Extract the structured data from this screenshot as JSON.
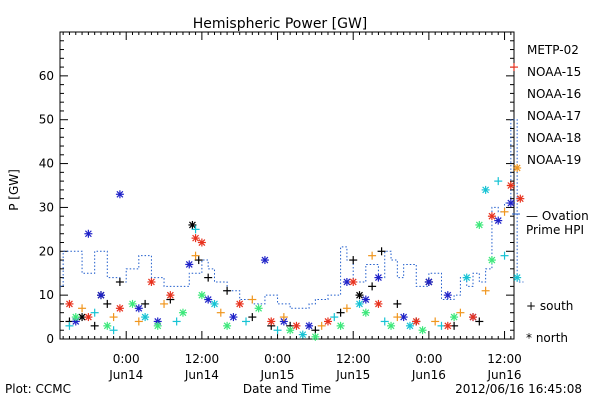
{
  "footer": {
    "left": "Plot: CCMC",
    "center": "Date and Time",
    "right": "2012/06/16 16:45:08"
  },
  "chart_data": {
    "type": "scatter",
    "title": "Hemispheric Power [GW]",
    "xlabel": "Date and Time",
    "ylabel": "P [GW]",
    "ylim": [
      0,
      70
    ],
    "xlim": [
      -10.5,
      61.5
    ],
    "x_unit": "hours since 2012-06-14 00:00",
    "yticks": [
      0,
      10,
      20,
      30,
      40,
      50,
      60
    ],
    "xticks": [
      {
        "x": 0,
        "time": "0:00",
        "date": "Jun14"
      },
      {
        "x": 12,
        "time": "12:00",
        "date": "Jun14"
      },
      {
        "x": 24,
        "time": "0:00",
        "date": "Jun15"
      },
      {
        "x": 36,
        "time": "12:00",
        "date": "Jun15"
      },
      {
        "x": 48,
        "time": "0:00",
        "date": "Jun16"
      },
      {
        "x": 60,
        "time": "12:00",
        "date": "Jun16"
      }
    ],
    "grid": false,
    "legend_position": "right-outside",
    "marker_legend": [
      {
        "symbol": "+",
        "label": "south"
      },
      {
        "symbol": "*",
        "label": "north"
      }
    ],
    "series": [
      {
        "name": "METP-02",
        "color": "#000000",
        "points": [
          {
            "x": -9,
            "y": 4,
            "m": "+"
          },
          {
            "x": -7,
            "y": 5,
            "m": "*"
          },
          {
            "x": -5,
            "y": 3,
            "m": "+"
          },
          {
            "x": -3,
            "y": 8,
            "m": "+"
          },
          {
            "x": -1,
            "y": 13,
            "m": "+"
          },
          {
            "x": -4,
            "y": 10,
            "m": "*"
          },
          {
            "x": 3,
            "y": 8,
            "m": "+"
          },
          {
            "x": 7,
            "y": 9,
            "m": "+"
          },
          {
            "x": 10.5,
            "y": 26,
            "m": "*"
          },
          {
            "x": 11.5,
            "y": 18,
            "m": "+"
          },
          {
            "x": 13,
            "y": 14,
            "m": "+"
          },
          {
            "x": 16,
            "y": 11,
            "m": "+"
          },
          {
            "x": 20,
            "y": 5,
            "m": "+"
          },
          {
            "x": 23,
            "y": 3,
            "m": "+"
          },
          {
            "x": 26,
            "y": 3,
            "m": "+"
          },
          {
            "x": 30,
            "y": 2,
            "m": "+"
          },
          {
            "x": 34,
            "y": 6,
            "m": "+"
          },
          {
            "x": 36,
            "y": 18,
            "m": "+"
          },
          {
            "x": 37,
            "y": 10,
            "m": "*"
          },
          {
            "x": 39,
            "y": 12,
            "m": "+"
          },
          {
            "x": 40.5,
            "y": 20,
            "m": "+"
          },
          {
            "x": 43,
            "y": 8,
            "m": "+"
          },
          {
            "x": 46,
            "y": 4,
            "m": "+"
          },
          {
            "x": 48,
            "y": 13,
            "m": "*"
          },
          {
            "x": 52,
            "y": 3,
            "m": "+"
          },
          {
            "x": 56,
            "y": 4,
            "m": "+"
          }
        ]
      },
      {
        "name": "NOAA-15",
        "color": "#1f22c8",
        "points": [
          {
            "x": -8,
            "y": 4,
            "m": "*"
          },
          {
            "x": -6,
            "y": 24,
            "m": "*"
          },
          {
            "x": -4,
            "y": 10,
            "m": "*"
          },
          {
            "x": -1,
            "y": 33,
            "m": "*"
          },
          {
            "x": 2,
            "y": 7,
            "m": "*"
          },
          {
            "x": 5,
            "y": 4,
            "m": "*"
          },
          {
            "x": 10,
            "y": 17,
            "m": "*"
          },
          {
            "x": 13,
            "y": 9,
            "m": "*"
          },
          {
            "x": 17,
            "y": 5,
            "m": "*"
          },
          {
            "x": 22,
            "y": 18,
            "m": "*"
          },
          {
            "x": 25,
            "y": 4,
            "m": "*"
          },
          {
            "x": 29,
            "y": 3,
            "m": "*"
          },
          {
            "x": 35,
            "y": 13,
            "m": "*"
          },
          {
            "x": 38,
            "y": 9,
            "m": "*"
          },
          {
            "x": 40,
            "y": 14,
            "m": "*"
          },
          {
            "x": 44,
            "y": 5,
            "m": "*"
          },
          {
            "x": 48,
            "y": 13,
            "m": "*"
          },
          {
            "x": 51,
            "y": 10,
            "m": "*"
          },
          {
            "x": 55,
            "y": 5,
            "m": "*"
          },
          {
            "x": 59,
            "y": 27,
            "m": "*"
          },
          {
            "x": 61,
            "y": 31,
            "m": "*"
          }
        ]
      },
      {
        "name": "NOAA-16",
        "color": "#17c3d4",
        "points": [
          {
            "x": -9,
            "y": 3,
            "m": "+"
          },
          {
            "x": -5,
            "y": 6,
            "m": "+"
          },
          {
            "x": -2,
            "y": 2,
            "m": "+"
          },
          {
            "x": 3,
            "y": 5,
            "m": "*"
          },
          {
            "x": 8,
            "y": 4,
            "m": "+"
          },
          {
            "x": 11,
            "y": 25,
            "m": "+"
          },
          {
            "x": 14,
            "y": 8,
            "m": "*"
          },
          {
            "x": 19,
            "y": 4,
            "m": "+"
          },
          {
            "x": 24,
            "y": 2,
            "m": "+"
          },
          {
            "x": 28,
            "y": 1,
            "m": "*"
          },
          {
            "x": 33,
            "y": 5,
            "m": "+"
          },
          {
            "x": 37,
            "y": 8,
            "m": "*"
          },
          {
            "x": 41,
            "y": 4,
            "m": "+"
          },
          {
            "x": 45,
            "y": 3,
            "m": "*"
          },
          {
            "x": 50,
            "y": 3,
            "m": "+"
          },
          {
            "x": 54,
            "y": 14,
            "m": "*"
          },
          {
            "x": 57,
            "y": 34,
            "m": "*"
          },
          {
            "x": 59,
            "y": 36,
            "m": "+"
          },
          {
            "x": 60,
            "y": 19,
            "m": "+"
          },
          {
            "x": 62,
            "y": 14,
            "m": "*"
          }
        ]
      },
      {
        "name": "NOAA-17",
        "color": "#3ce87a",
        "points": [
          {
            "x": -8,
            "y": 5,
            "m": "*"
          },
          {
            "x": -3,
            "y": 3,
            "m": "*"
          },
          {
            "x": 1,
            "y": 8,
            "m": "*"
          },
          {
            "x": 5,
            "y": 3,
            "m": "*"
          },
          {
            "x": 9,
            "y": 6,
            "m": "*"
          },
          {
            "x": 12,
            "y": 10,
            "m": "*"
          },
          {
            "x": 16,
            "y": 3,
            "m": "*"
          },
          {
            "x": 21,
            "y": 7,
            "m": "*"
          },
          {
            "x": 26,
            "y": 2,
            "m": "*"
          },
          {
            "x": 30,
            "y": 0.5,
            "m": "*"
          },
          {
            "x": 34,
            "y": 3,
            "m": "*"
          },
          {
            "x": 38,
            "y": 6,
            "m": "*"
          },
          {
            "x": 42,
            "y": 3,
            "m": "*"
          },
          {
            "x": 47,
            "y": 2,
            "m": "*"
          },
          {
            "x": 52,
            "y": 5,
            "m": "*"
          },
          {
            "x": 56,
            "y": 26,
            "m": "*"
          },
          {
            "x": 58,
            "y": 18,
            "m": "*"
          }
        ]
      },
      {
        "name": "NOAA-18",
        "color": "#f0961e",
        "points": [
          {
            "x": -7,
            "y": 7,
            "m": "+"
          },
          {
            "x": -2,
            "y": 5,
            "m": "+"
          },
          {
            "x": 2,
            "y": 4,
            "m": "+"
          },
          {
            "x": 6,
            "y": 8,
            "m": "+"
          },
          {
            "x": 11,
            "y": 19,
            "m": "+"
          },
          {
            "x": 15,
            "y": 6,
            "m": "+"
          },
          {
            "x": 20,
            "y": 9,
            "m": "+"
          },
          {
            "x": 25,
            "y": 5,
            "m": "+"
          },
          {
            "x": 31,
            "y": 3,
            "m": "+"
          },
          {
            "x": 35,
            "y": 7,
            "m": "+"
          },
          {
            "x": 39,
            "y": 19,
            "m": "+"
          },
          {
            "x": 43,
            "y": 5,
            "m": "+"
          },
          {
            "x": 49,
            "y": 4,
            "m": "+"
          },
          {
            "x": 53,
            "y": 6,
            "m": "+"
          },
          {
            "x": 57,
            "y": 11,
            "m": "+"
          },
          {
            "x": 60,
            "y": 29,
            "m": "+"
          },
          {
            "x": 61,
            "y": 35,
            "m": "+"
          },
          {
            "x": 62,
            "y": 39,
            "m": "*"
          }
        ]
      },
      {
        "name": "NOAA-19",
        "color": "#e8321e",
        "points": [
          {
            "x": -9,
            "y": 8,
            "m": "*"
          },
          {
            "x": -6,
            "y": 5,
            "m": "*"
          },
          {
            "x": -1,
            "y": 7,
            "m": "*"
          },
          {
            "x": 4,
            "y": 13,
            "m": "*"
          },
          {
            "x": 7,
            "y": 10,
            "m": "*"
          },
          {
            "x": 11,
            "y": 23,
            "m": "*"
          },
          {
            "x": 12,
            "y": 22,
            "m": "*"
          },
          {
            "x": 18,
            "y": 8,
            "m": "*"
          },
          {
            "x": 23,
            "y": 4,
            "m": "*"
          },
          {
            "x": 27,
            "y": 3,
            "m": "*"
          },
          {
            "x": 32,
            "y": 4,
            "m": "*"
          },
          {
            "x": 36,
            "y": 13,
            "m": "*"
          },
          {
            "x": 40,
            "y": 8,
            "m": "*"
          },
          {
            "x": 46,
            "y": 4,
            "m": "*"
          },
          {
            "x": 51,
            "y": 3,
            "m": "*"
          },
          {
            "x": 55,
            "y": 5,
            "m": "*"
          },
          {
            "x": 58,
            "y": 28,
            "m": "*"
          },
          {
            "x": 61,
            "y": 35,
            "m": "*"
          },
          {
            "x": 62.5,
            "y": 32,
            "m": "*"
          },
          {
            "x": 61.5,
            "y": 62,
            "m": "+"
          }
        ]
      }
    ],
    "overlay": {
      "name": "— Ovation Prime HPI",
      "name_lines": [
        "— Ovation",
        "Prime HPI"
      ],
      "color": "#1f5ccc",
      "style": "dotted-step",
      "values": [
        [
          -10.5,
          12
        ],
        [
          -10,
          20
        ],
        [
          -8,
          20
        ],
        [
          -7,
          15
        ],
        [
          -5,
          20
        ],
        [
          -3,
          14
        ],
        [
          -1,
          13
        ],
        [
          0,
          16
        ],
        [
          1.5,
          16
        ],
        [
          2,
          19
        ],
        [
          4,
          14
        ],
        [
          6,
          12
        ],
        [
          8,
          12
        ],
        [
          10,
          15
        ],
        [
          12,
          18
        ],
        [
          13,
          16
        ],
        [
          14,
          13
        ],
        [
          16,
          11
        ],
        [
          18,
          9
        ],
        [
          20,
          8
        ],
        [
          22,
          10
        ],
        [
          24,
          8
        ],
        [
          26,
          7
        ],
        [
          28,
          7
        ],
        [
          29,
          8
        ],
        [
          30,
          9
        ],
        [
          32,
          10
        ],
        [
          34,
          21
        ],
        [
          35,
          18
        ],
        [
          36,
          13
        ],
        [
          38,
          17
        ],
        [
          40,
          14
        ],
        [
          41,
          20
        ],
        [
          42,
          18
        ],
        [
          43,
          14
        ],
        [
          44,
          17
        ],
        [
          46,
          12
        ],
        [
          48,
          15
        ],
        [
          50,
          9
        ],
        [
          52,
          10
        ],
        [
          53,
          14
        ],
        [
          54,
          12
        ],
        [
          55,
          15
        ],
        [
          56,
          13
        ],
        [
          57,
          16
        ],
        [
          58,
          30
        ],
        [
          59,
          29
        ],
        [
          60,
          31
        ],
        [
          61,
          50
        ],
        [
          62,
          13
        ],
        [
          63,
          13
        ]
      ]
    }
  }
}
